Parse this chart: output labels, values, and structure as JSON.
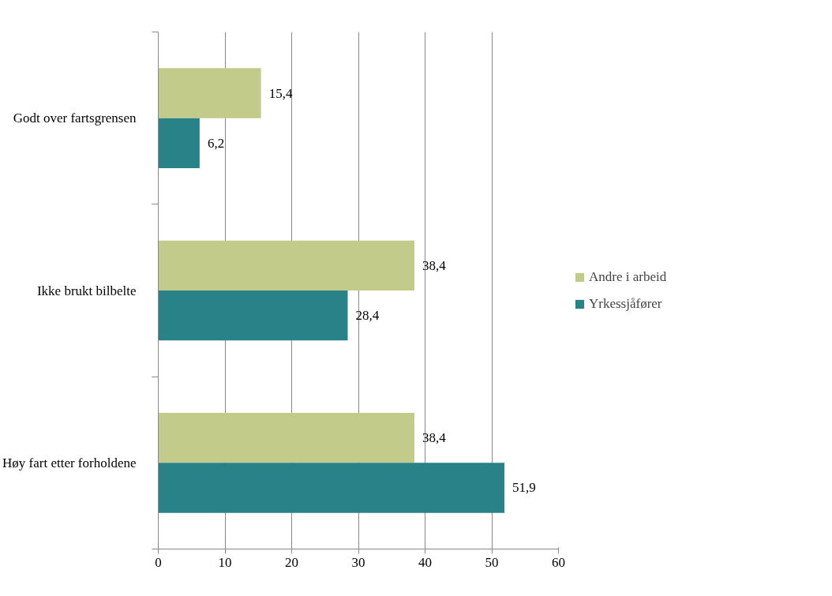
{
  "chart_data": {
    "type": "bar",
    "orientation": "horizontal",
    "categories": [
      "Godt over fartsgrensen",
      "Ikke brukt bilbelte",
      "Høy fart etter forholdene"
    ],
    "series": [
      {
        "name": "Andre i arbeid",
        "color": "#c3cb8b",
        "values": [
          15.4,
          38.4,
          38.4
        ],
        "value_labels": [
          "15,4",
          "38,4",
          "38,4"
        ]
      },
      {
        "name": "Yrkessjåfører",
        "color": "#2a8289",
        "values": [
          6.2,
          28.4,
          51.9
        ],
        "value_labels": [
          "6,2",
          "28,4",
          "51,9"
        ]
      }
    ],
    "xlim": [
      0,
      60
    ],
    "xticks": [
      0,
      10,
      20,
      30,
      40,
      50,
      60
    ],
    "grid": "x",
    "legend": "right"
  }
}
